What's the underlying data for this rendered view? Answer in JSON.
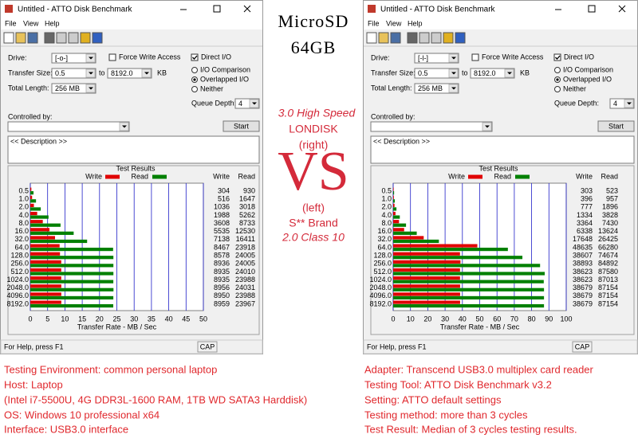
{
  "windows": [
    {
      "title": "Untitled - ATTO Disk Benchmark",
      "menu": [
        "File",
        "View",
        "Help"
      ],
      "drive_label": "Drive:",
      "drive": "[-o-]",
      "force_write": "Force Write Access",
      "direct_io": "Direct I/O",
      "transfer_size_label": "Transfer Size:",
      "ts_from": "0.5",
      "to": "to",
      "ts_to": "8192.0",
      "kb": "KB",
      "total_length_label": "Total Length:",
      "total_length": "256 MB",
      "io_comparison": "I/O Comparison",
      "overlapped_io": "Overlapped I/O",
      "neither": "Neither",
      "queue_depth_label": "Queue Depth:",
      "queue_depth": "4",
      "controlled_by": "Controlled by:",
      "start": "Start",
      "description": "<< Description >>",
      "status": "For Help, press F1",
      "cap": "CAP"
    },
    {
      "title": "Untitled - ATTO Disk Benchmark",
      "menu": [
        "File",
        "View",
        "Help"
      ],
      "drive_label": "Drive:",
      "drive": "[-l-]",
      "force_write": "Force Write Access",
      "direct_io": "Direct I/O",
      "transfer_size_label": "Transfer Size:",
      "ts_from": "0.5",
      "to": "to",
      "ts_to": "8192.0",
      "kb": "KB",
      "total_length_label": "Total Length:",
      "total_length": "256 MB",
      "io_comparison": "I/O Comparison",
      "overlapped_io": "Overlapped I/O",
      "neither": "Neither",
      "queue_depth_label": "Queue Depth:",
      "queue_depth": "4",
      "controlled_by": "Controlled by:",
      "start": "Start",
      "description": "<< Description >>",
      "status": "For Help, press F1",
      "cap": "CAP"
    }
  ],
  "chart_data": [
    {
      "type": "bar",
      "orientation": "horizontal",
      "title": "Test Results",
      "categories": [
        "0.5",
        "1.0",
        "2.0",
        "4.0",
        "8.0",
        "16.0",
        "32.0",
        "64.0",
        "128.0",
        "256.0",
        "512.0",
        "1024.0",
        "2048.0",
        "4096.0",
        "8192.0"
      ],
      "series": [
        {
          "name": "Write",
          "color": "#e00000",
          "values": [
            0.304,
            0.516,
            1.036,
            1.988,
            3.608,
            5.535,
            7.138,
            8.467,
            8.578,
            8.936,
            8.935,
            8.935,
            8.956,
            8.95,
            8.959
          ],
          "value_labels": [
            "304",
            "516",
            "1036",
            "1988",
            "3608",
            "5535",
            "7138",
            "8467",
            "8578",
            "8936",
            "8935",
            "8935",
            "8956",
            "8950",
            "8959"
          ]
        },
        {
          "name": "Read",
          "color": "#008000",
          "values": [
            0.93,
            1.647,
            3.018,
            5.262,
            8.733,
            12.53,
            16.411,
            23.918,
            24.005,
            24.005,
            24.01,
            23.988,
            24.031,
            23.988,
            23.967
          ],
          "value_labels": [
            "930",
            "1647",
            "3018",
            "5262",
            "8733",
            "12530",
            "16411",
            "23918",
            "24005",
            "24005",
            "24010",
            "23988",
            "24031",
            "23988",
            "23967"
          ]
        }
      ],
      "xlim": [
        0,
        50
      ],
      "xticks": [
        0,
        5,
        10,
        15,
        20,
        25,
        30,
        35,
        40,
        45,
        50
      ],
      "xlabel": "Transfer Rate - MB / Sec",
      "grid": true
    },
    {
      "type": "bar",
      "orientation": "horizontal",
      "title": "Test Results",
      "categories": [
        "0.5",
        "1.0",
        "2.0",
        "4.0",
        "8.0",
        "16.0",
        "32.0",
        "64.0",
        "128.0",
        "256.0",
        "512.0",
        "1024.0",
        "2048.0",
        "4096.0",
        "8192.0"
      ],
      "series": [
        {
          "name": "Write",
          "color": "#e00000",
          "values": [
            0.303,
            0.396,
            0.777,
            1.334,
            3.364,
            6.338,
            17.648,
            48.635,
            38.607,
            38.893,
            38.623,
            38.623,
            38.679,
            38.679,
            38.679
          ],
          "value_labels": [
            "303",
            "396",
            "777",
            "1334",
            "3364",
            "6338",
            "17648",
            "48635",
            "38607",
            "38893",
            "38623",
            "38623",
            "38679",
            "38679",
            "38679"
          ]
        },
        {
          "name": "Read",
          "color": "#008000",
          "values": [
            0.523,
            0.957,
            1.896,
            3.828,
            7.43,
            13.624,
            26.425,
            66.28,
            74.674,
            84.892,
            87.58,
            87.013,
            87.154,
            87.154,
            87.154
          ],
          "value_labels": [
            "523",
            "957",
            "1896",
            "3828",
            "7430",
            "13624",
            "26425",
            "66280",
            "74674",
            "84892",
            "87580",
            "87013",
            "87154",
            "87154",
            "87154"
          ]
        }
      ],
      "xlim": [
        0,
        100
      ],
      "xticks": [
        0,
        10,
        20,
        30,
        40,
        50,
        60,
        70,
        80,
        90,
        100
      ],
      "xlabel": "Transfer Rate - MB / Sec",
      "grid": true
    }
  ],
  "middle": {
    "heading": [
      "MicroSD",
      "64GB"
    ],
    "right_desc": [
      "3.0 High Speed",
      "LONDISK",
      "(right)"
    ],
    "vs": "VS",
    "left_desc": [
      "(left)",
      "S** Brand",
      "2.0 Class 10"
    ]
  },
  "notes_left": [
    "Testing Environment: common personal laptop",
    "Host: Laptop",
    "(Intel i7-5500U, 4G DDR3L-1600 RAM, 1TB WD SATA3 Harddisk)",
    "OS: Windows 10 professional x64",
    "Interface: USB3.0 interface"
  ],
  "notes_right": [
    "Adapter: Transcend USB3.0 multiplex card reader",
    "Testing Tool: ATTO Disk Benchmark v3.2",
    "Setting: ATTO default settings",
    "Testing method: more than 3 cycles",
    "Test Result: Median of 3 cycles testing results."
  ]
}
